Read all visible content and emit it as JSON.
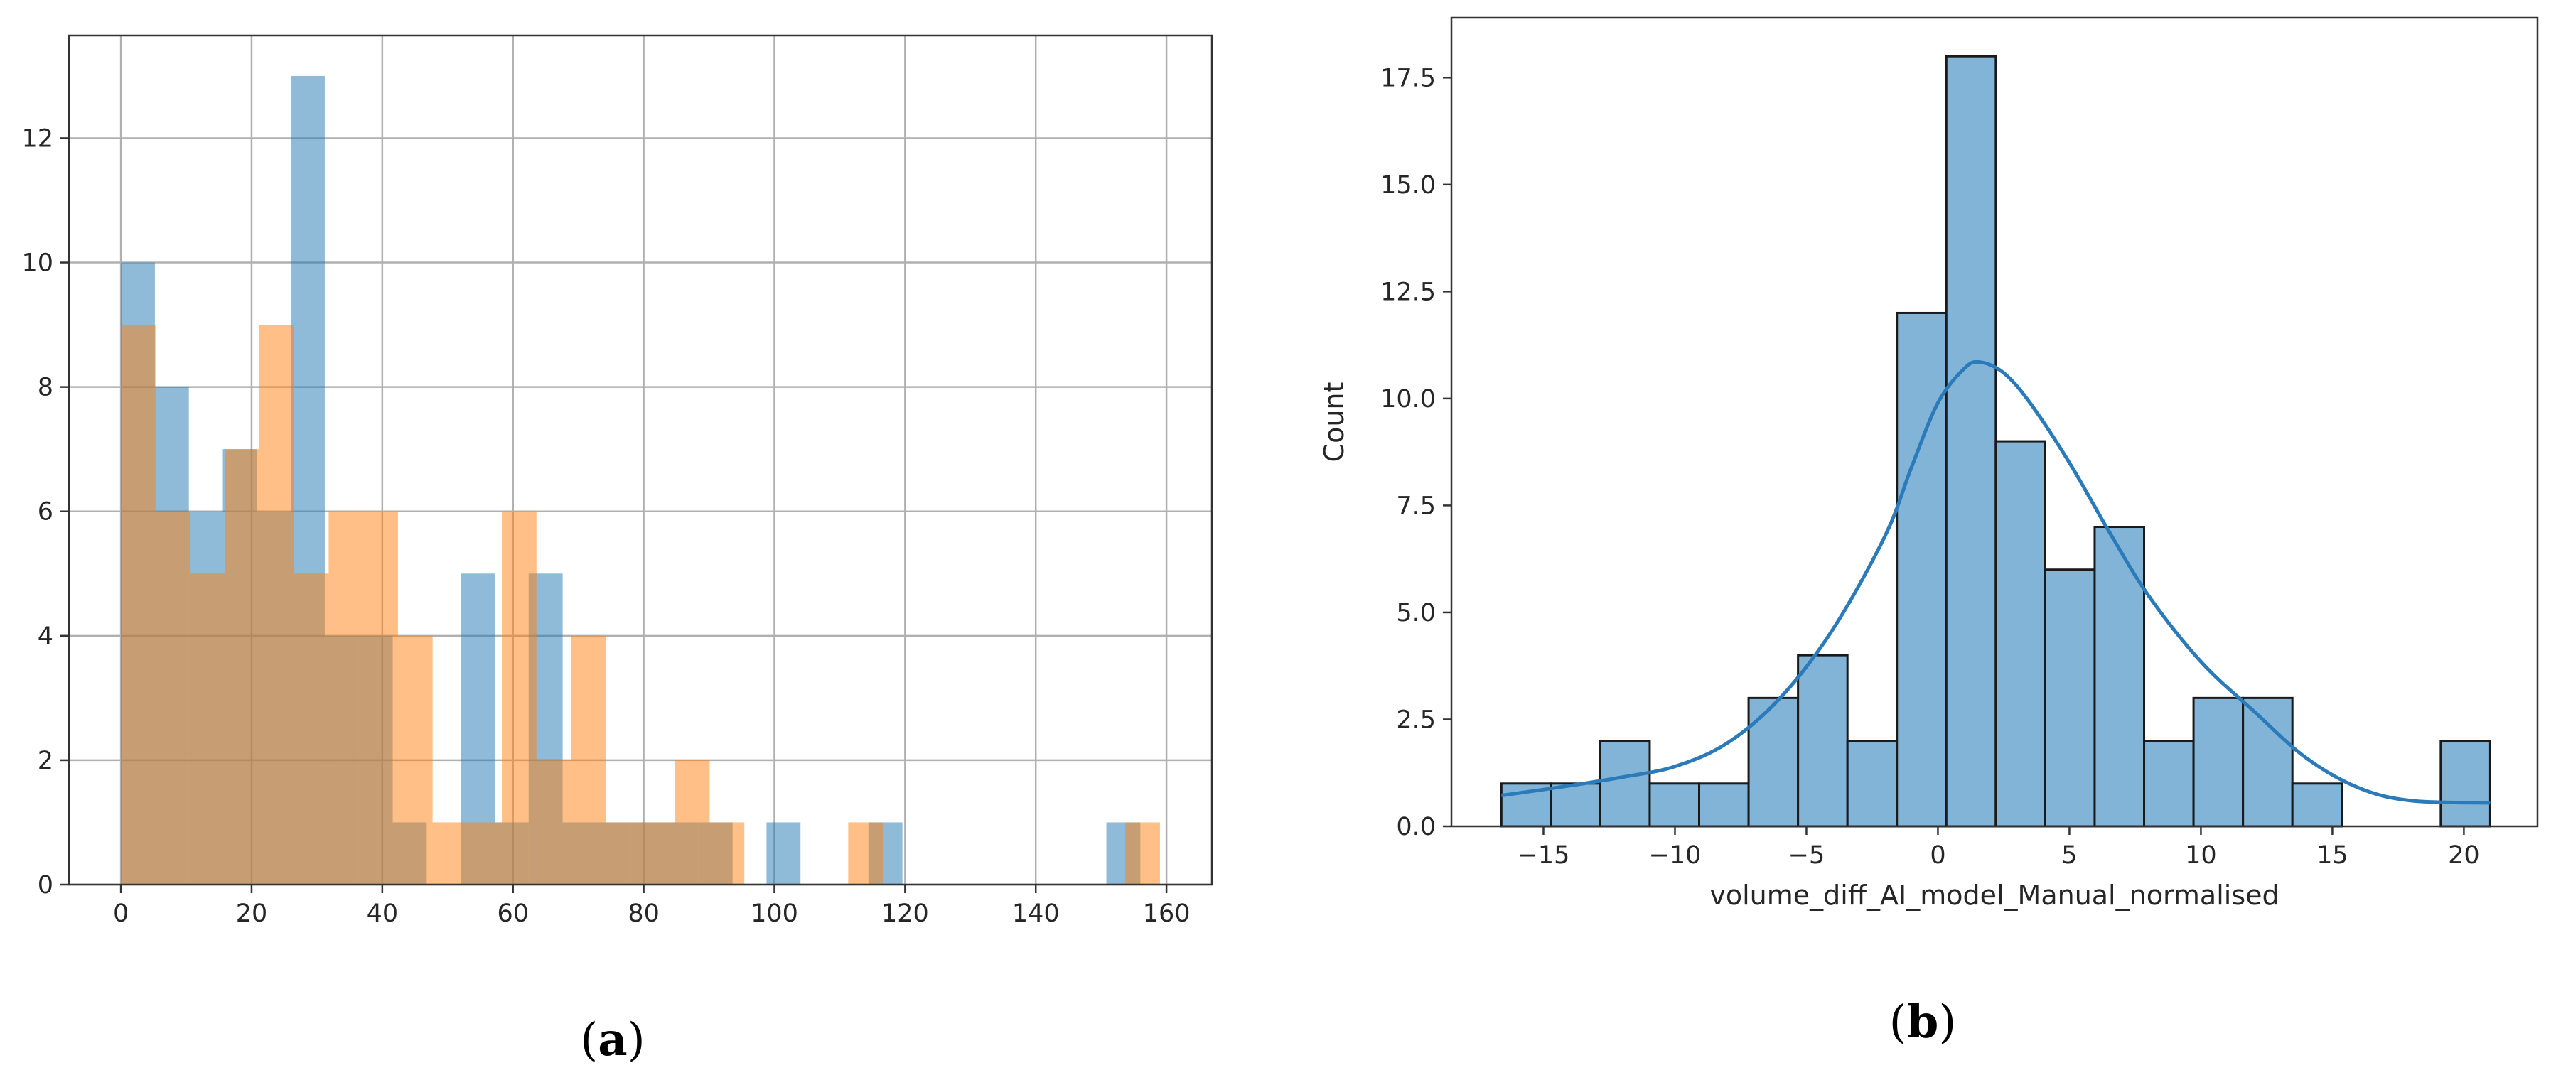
{
  "panels": {
    "a": {
      "label_open": "(",
      "label_letter": "a",
      "label_close": ")"
    },
    "b": {
      "label_open": "(",
      "label_letter": "b",
      "label_close": ")"
    }
  },
  "colors": {
    "series_blue": "#1f77b4",
    "series_orange": "#ff7f0e",
    "grid": "#b0b0b0",
    "hist_fill": "#82b4d8",
    "kde_line": "#2b7bba",
    "bar_edge": "#1a1a1a"
  },
  "chart_data": [
    {
      "type": "bar",
      "xlim": [
        -7.95,
        166.95
      ],
      "ylim": [
        0,
        13.65
      ],
      "grid": true,
      "xticks": [
        0,
        20,
        40,
        60,
        80,
        100,
        120,
        140,
        160
      ],
      "yticks": [
        0,
        2,
        4,
        6,
        8,
        10,
        12
      ],
      "opacity": 0.5,
      "series": [
        {
          "color": "#1f77b4",
          "bins": [
            [
              0,
              5.2,
              10
            ],
            [
              5.2,
              10.4,
              8
            ],
            [
              10.4,
              15.6,
              6
            ],
            [
              15.6,
              20.8,
              7
            ],
            [
              20.8,
              26,
              6
            ],
            [
              26,
              31.2,
              13
            ],
            [
              31.2,
              36.4,
              4
            ],
            [
              36.4,
              41.6,
              4
            ],
            [
              41.6,
              46.8,
              1
            ],
            [
              46.8,
              52,
              0
            ],
            [
              52,
              57.2,
              5
            ],
            [
              57.2,
              62.4,
              1
            ],
            [
              62.4,
              67.6,
              5
            ],
            [
              67.6,
              72.8,
              1
            ],
            [
              72.8,
              78,
              1
            ],
            [
              78,
              83.2,
              1
            ],
            [
              83.2,
              88.4,
              1
            ],
            [
              88.4,
              93.6,
              1
            ],
            [
              93.6,
              98.8,
              0
            ],
            [
              98.8,
              104,
              1
            ],
            [
              114.4,
              119.6,
              1
            ],
            [
              150.8,
              156,
              1
            ]
          ]
        },
        {
          "color": "#ff7f0e",
          "bins": [
            [
              0,
              5.3,
              9
            ],
            [
              5.3,
              10.6,
              6
            ],
            [
              10.6,
              15.9,
              5
            ],
            [
              15.9,
              21.2,
              7
            ],
            [
              21.2,
              26.5,
              9
            ],
            [
              26.5,
              31.8,
              5
            ],
            [
              31.8,
              37.1,
              6
            ],
            [
              37.1,
              42.4,
              6
            ],
            [
              42.4,
              47.7,
              4
            ],
            [
              47.7,
              53,
              1
            ],
            [
              53,
              58.3,
              1
            ],
            [
              58.3,
              63.6,
              6
            ],
            [
              63.6,
              68.9,
              2
            ],
            [
              68.9,
              74.2,
              4
            ],
            [
              74.2,
              79.5,
              1
            ],
            [
              79.5,
              84.8,
              1
            ],
            [
              84.8,
              90.1,
              2
            ],
            [
              90.1,
              95.4,
              1
            ],
            [
              111.3,
              116.6,
              1
            ],
            [
              153.7,
              159,
              1
            ]
          ]
        }
      ]
    },
    {
      "type": "bar",
      "xlabel": "volume_diff_AI_model_Manual_normalised",
      "ylabel": "Count",
      "xlim": [
        -18.5,
        22.8
      ],
      "ylim": [
        0,
        18.9
      ],
      "grid": false,
      "xticks": [
        -15,
        -10,
        -5,
        0,
        5,
        10,
        15,
        20
      ],
      "yticks": [
        "0.0",
        "2.5",
        "5.0",
        "7.5",
        "10.0",
        "12.5",
        "15.0",
        "17.5"
      ],
      "bin_start": -16.6,
      "bin_width": 1.88,
      "counts": [
        1,
        1,
        2,
        1,
        1,
        3,
        4,
        2,
        12,
        18,
        9,
        6,
        7,
        2,
        3,
        3,
        1,
        0,
        0,
        2
      ],
      "kde": [
        [
          -16.6,
          0.72
        ],
        [
          -14,
          0.95
        ],
        [
          -12,
          1.15
        ],
        [
          -10,
          1.4
        ],
        [
          -8,
          1.95
        ],
        [
          -6,
          3.0
        ],
        [
          -4,
          4.6
        ],
        [
          -2,
          6.8
        ],
        [
          -1,
          8.4
        ],
        [
          0,
          9.9
        ],
        [
          1,
          10.7
        ],
        [
          1.6,
          10.85
        ],
        [
          2.5,
          10.6
        ],
        [
          3.5,
          9.9
        ],
        [
          5,
          8.5
        ],
        [
          6.5,
          6.9
        ],
        [
          8,
          5.4
        ],
        [
          10,
          3.85
        ],
        [
          12,
          2.7
        ],
        [
          14,
          1.6
        ],
        [
          16,
          0.9
        ],
        [
          18,
          0.6
        ],
        [
          21,
          0.55
        ]
      ]
    }
  ]
}
